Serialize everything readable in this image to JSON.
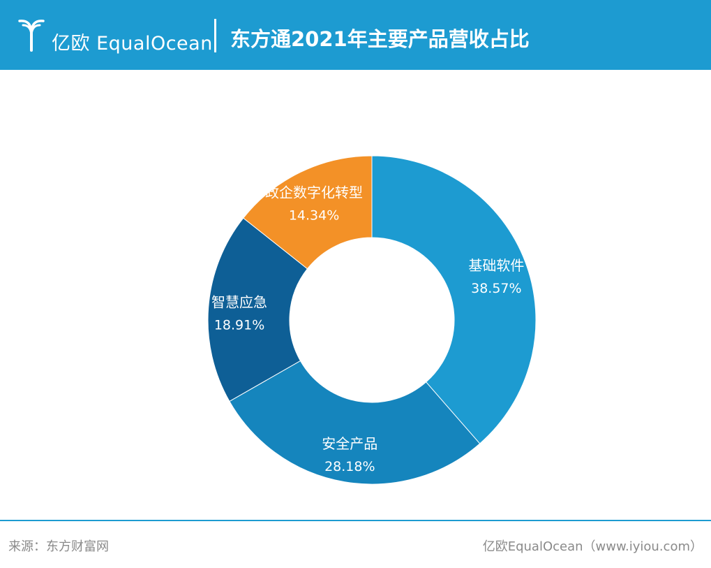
{
  "header": {
    "brand_cn": "亿欧",
    "brand_en": "EqualOcean",
    "title": "东方通2021年主要产品营收占比"
  },
  "footer": {
    "source": "来源：东方财富网",
    "credit": "亿欧EqualOcean（www.iyiou.com）"
  },
  "colors": {
    "header_bg": "#1d9bd1",
    "slice_colors": [
      "#1d9bd1",
      "#1585bd",
      "#0e5f96",
      "#f39127"
    ]
  },
  "chart_data": {
    "type": "pie",
    "donut": true,
    "title": "东方通2021年主要产品营收占比",
    "categories": [
      "基础软件",
      "安全产品",
      "智慧应急",
      "政企数字化转型"
    ],
    "values": [
      38.57,
      28.18,
      18.91,
      14.34
    ],
    "value_labels": [
      "38.57%",
      "28.18%",
      "18.91%",
      "14.34%"
    ],
    "start": "12 o'clock",
    "direction": "clockwise",
    "legend": "none"
  }
}
